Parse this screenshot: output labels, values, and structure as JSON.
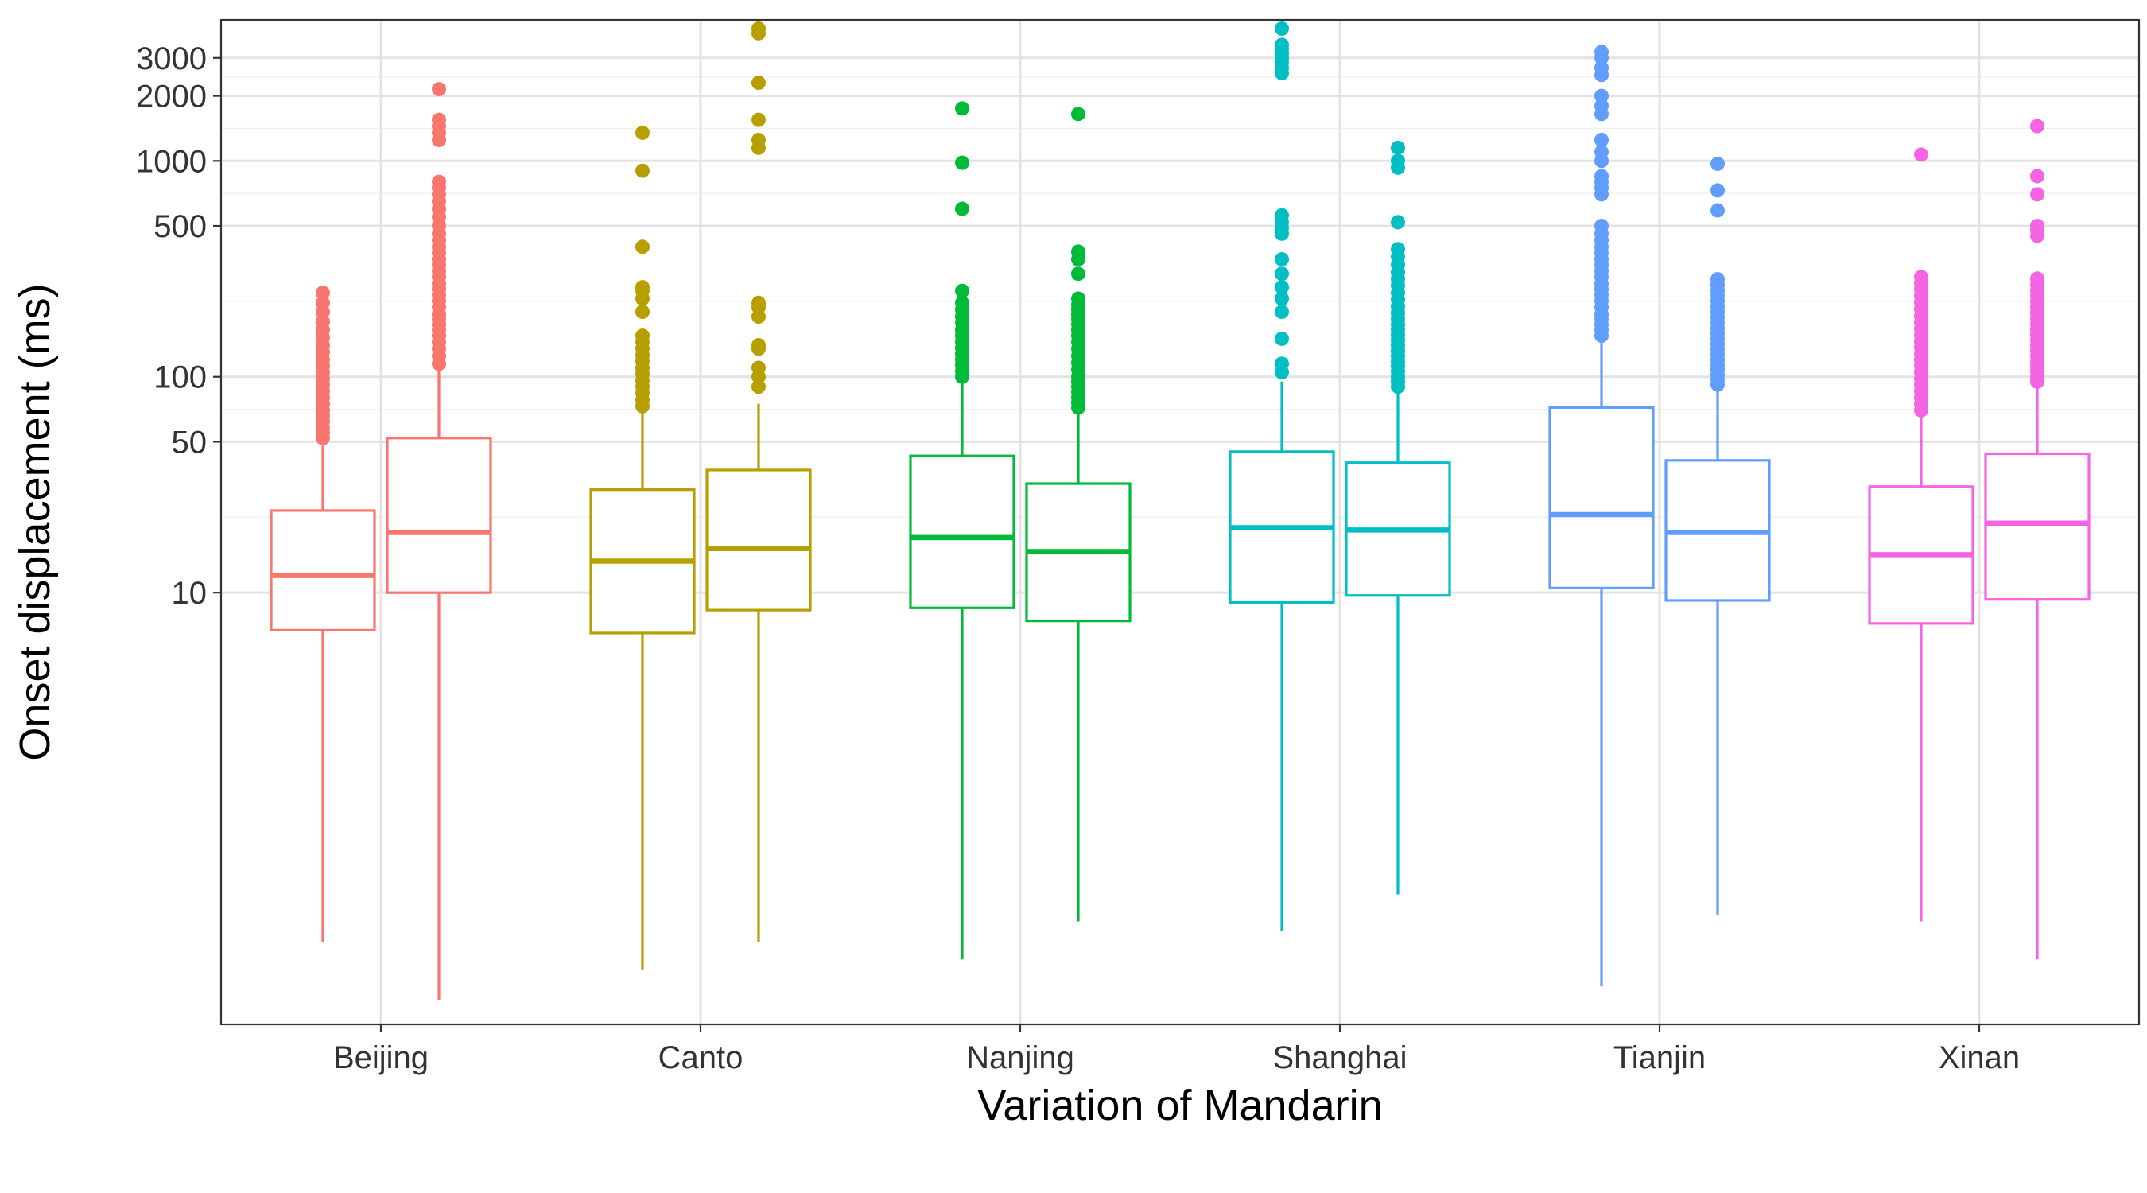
{
  "chart_data": {
    "type": "boxplot",
    "title": "",
    "xlabel": "Variation of Mandarin",
    "ylabel": "Onset displacement (ms)",
    "y_scale": "log10",
    "ylim": [
      0.1,
      4500
    ],
    "y_ticks": [
      10,
      50,
      100,
      500,
      1000,
      2000,
      3000
    ],
    "y_tick_labels": [
      "10",
      "50",
      "100",
      "500",
      "1000",
      "2000",
      "3000"
    ],
    "categories": [
      "Beijing",
      "Canto",
      "Nanjing",
      "Shanghai",
      "Tianjin",
      "Xinan"
    ],
    "colors": [
      "#F8766D",
      "#B79F00",
      "#00BA38",
      "#00BFC4",
      "#619CFF",
      "#F564E3"
    ],
    "grid": true,
    "legend": "none",
    "boxes": [
      {
        "category": "Beijing",
        "position": "left",
        "q1": 6.7,
        "median": 12,
        "q3": 24,
        "whisker_low": 0.24,
        "whisker_high": 48,
        "outliers": [
          52,
          55,
          58,
          62,
          66,
          70,
          75,
          80,
          86,
          92,
          98,
          105,
          112,
          120,
          130,
          140,
          152,
          165,
          180,
          200,
          220,
          245
        ]
      },
      {
        "category": "Beijing",
        "position": "right",
        "q1": 10,
        "median": 19,
        "q3": 52,
        "whisker_low": 0.13,
        "whisker_high": 110,
        "outliers": [
          115,
          125,
          135,
          145,
          155,
          165,
          175,
          185,
          195,
          210,
          225,
          240,
          255,
          270,
          290,
          310,
          330,
          350,
          375,
          400,
          430,
          460,
          500,
          550,
          600,
          650,
          700,
          750,
          800,
          1250,
          1350,
          1450,
          1550,
          2150
        ]
      },
      {
        "category": "Canto",
        "position": "left",
        "q1": 6.5,
        "median": 14,
        "q3": 30,
        "whisker_low": 0.18,
        "whisker_high": 70,
        "outliers": [
          73,
          78,
          84,
          90,
          96,
          103,
          110,
          118,
          126,
          135,
          145,
          155,
          200,
          230,
          250,
          260,
          400,
          900,
          1350
        ]
      },
      {
        "category": "Canto",
        "position": "right",
        "q1": 8.3,
        "median": 16,
        "q3": 37,
        "whisker_low": 0.24,
        "whisker_high": 75,
        "outliers": [
          90,
          100,
          110,
          135,
          140,
          190,
          210,
          220,
          1150,
          1250,
          1550,
          2300,
          3900,
          4100
        ]
      },
      {
        "category": "Nanjing",
        "position": "left",
        "q1": 8.5,
        "median": 18,
        "q3": 43,
        "whisker_low": 0.2,
        "whisker_high": 95,
        "outliers": [
          100,
          106,
          113,
          120,
          128,
          136,
          145,
          155,
          165,
          178,
          190,
          205,
          220,
          250,
          600,
          980,
          1750
        ]
      },
      {
        "category": "Nanjing",
        "position": "right",
        "q1": 7.4,
        "median": 15.5,
        "q3": 32,
        "whisker_low": 0.3,
        "whisker_high": 70,
        "outliers": [
          72,
          76,
          80,
          85,
          90,
          95,
          100,
          108,
          116,
          125,
          135,
          145,
          155,
          165,
          175,
          185,
          195,
          205,
          215,
          230,
          300,
          350,
          380,
          1650
        ]
      },
      {
        "category": "Shanghai",
        "position": "left",
        "q1": 9,
        "median": 20,
        "q3": 45,
        "whisker_low": 0.27,
        "whisker_high": 95,
        "outliers": [
          105,
          115,
          150,
          200,
          230,
          260,
          300,
          350,
          460,
          490,
          520,
          560,
          2550,
          2700,
          2850,
          3000,
          3150,
          3300,
          3450,
          4100
        ]
      },
      {
        "category": "Shanghai",
        "position": "right",
        "q1": 9.7,
        "median": 19.5,
        "q3": 40,
        "whisker_low": 0.4,
        "whisker_high": 85,
        "outliers": [
          90,
          95,
          100,
          106,
          112,
          118,
          125,
          132,
          140,
          148,
          156,
          165,
          175,
          186,
          198,
          212,
          228,
          245,
          265,
          285,
          305,
          330,
          360,
          390,
          520,
          930,
          1000,
          1150
        ]
      },
      {
        "category": "Tianjin",
        "position": "left",
        "q1": 10.5,
        "median": 23,
        "q3": 72,
        "whisker_low": 0.15,
        "whisker_high": 150,
        "outliers": [
          155,
          165,
          175,
          185,
          195,
          210,
          225,
          240,
          255,
          270,
          290,
          310,
          330,
          350,
          375,
          400,
          430,
          460,
          500,
          700,
          750,
          800,
          850,
          1000,
          1100,
          1250,
          1650,
          1800,
          2000,
          2500,
          2700,
          3000,
          3200
        ]
      },
      {
        "category": "Tianjin",
        "position": "right",
        "q1": 9.2,
        "median": 19,
        "q3": 41,
        "whisker_low": 0.32,
        "whisker_high": 88,
        "outliers": [
          92,
          97,
          102,
          108,
          114,
          120,
          127,
          134,
          142,
          150,
          159,
          168,
          178,
          189,
          200,
          212,
          225,
          238,
          252,
          267,
          283,
          590,
          730,
          970
        ]
      },
      {
        "category": "Xinan",
        "position": "left",
        "q1": 7.2,
        "median": 15,
        "q3": 31,
        "whisker_low": 0.3,
        "whisker_high": 66,
        "outliers": [
          70,
          75,
          80,
          86,
          92,
          98,
          105,
          112,
          120,
          128,
          137,
          146,
          156,
          167,
          179,
          192,
          206,
          221,
          237,
          254,
          272,
          290,
          1070
        ]
      },
      {
        "category": "Xinan",
        "position": "right",
        "q1": 9.3,
        "median": 21,
        "q3": 44,
        "whisker_low": 0.2,
        "whisker_high": 90,
        "outliers": [
          95,
          100,
          106,
          112,
          118,
          125,
          132,
          140,
          148,
          157,
          166,
          176,
          187,
          198,
          210,
          223,
          237,
          252,
          268,
          285,
          450,
          480,
          500,
          700,
          850,
          1450
        ]
      }
    ]
  }
}
